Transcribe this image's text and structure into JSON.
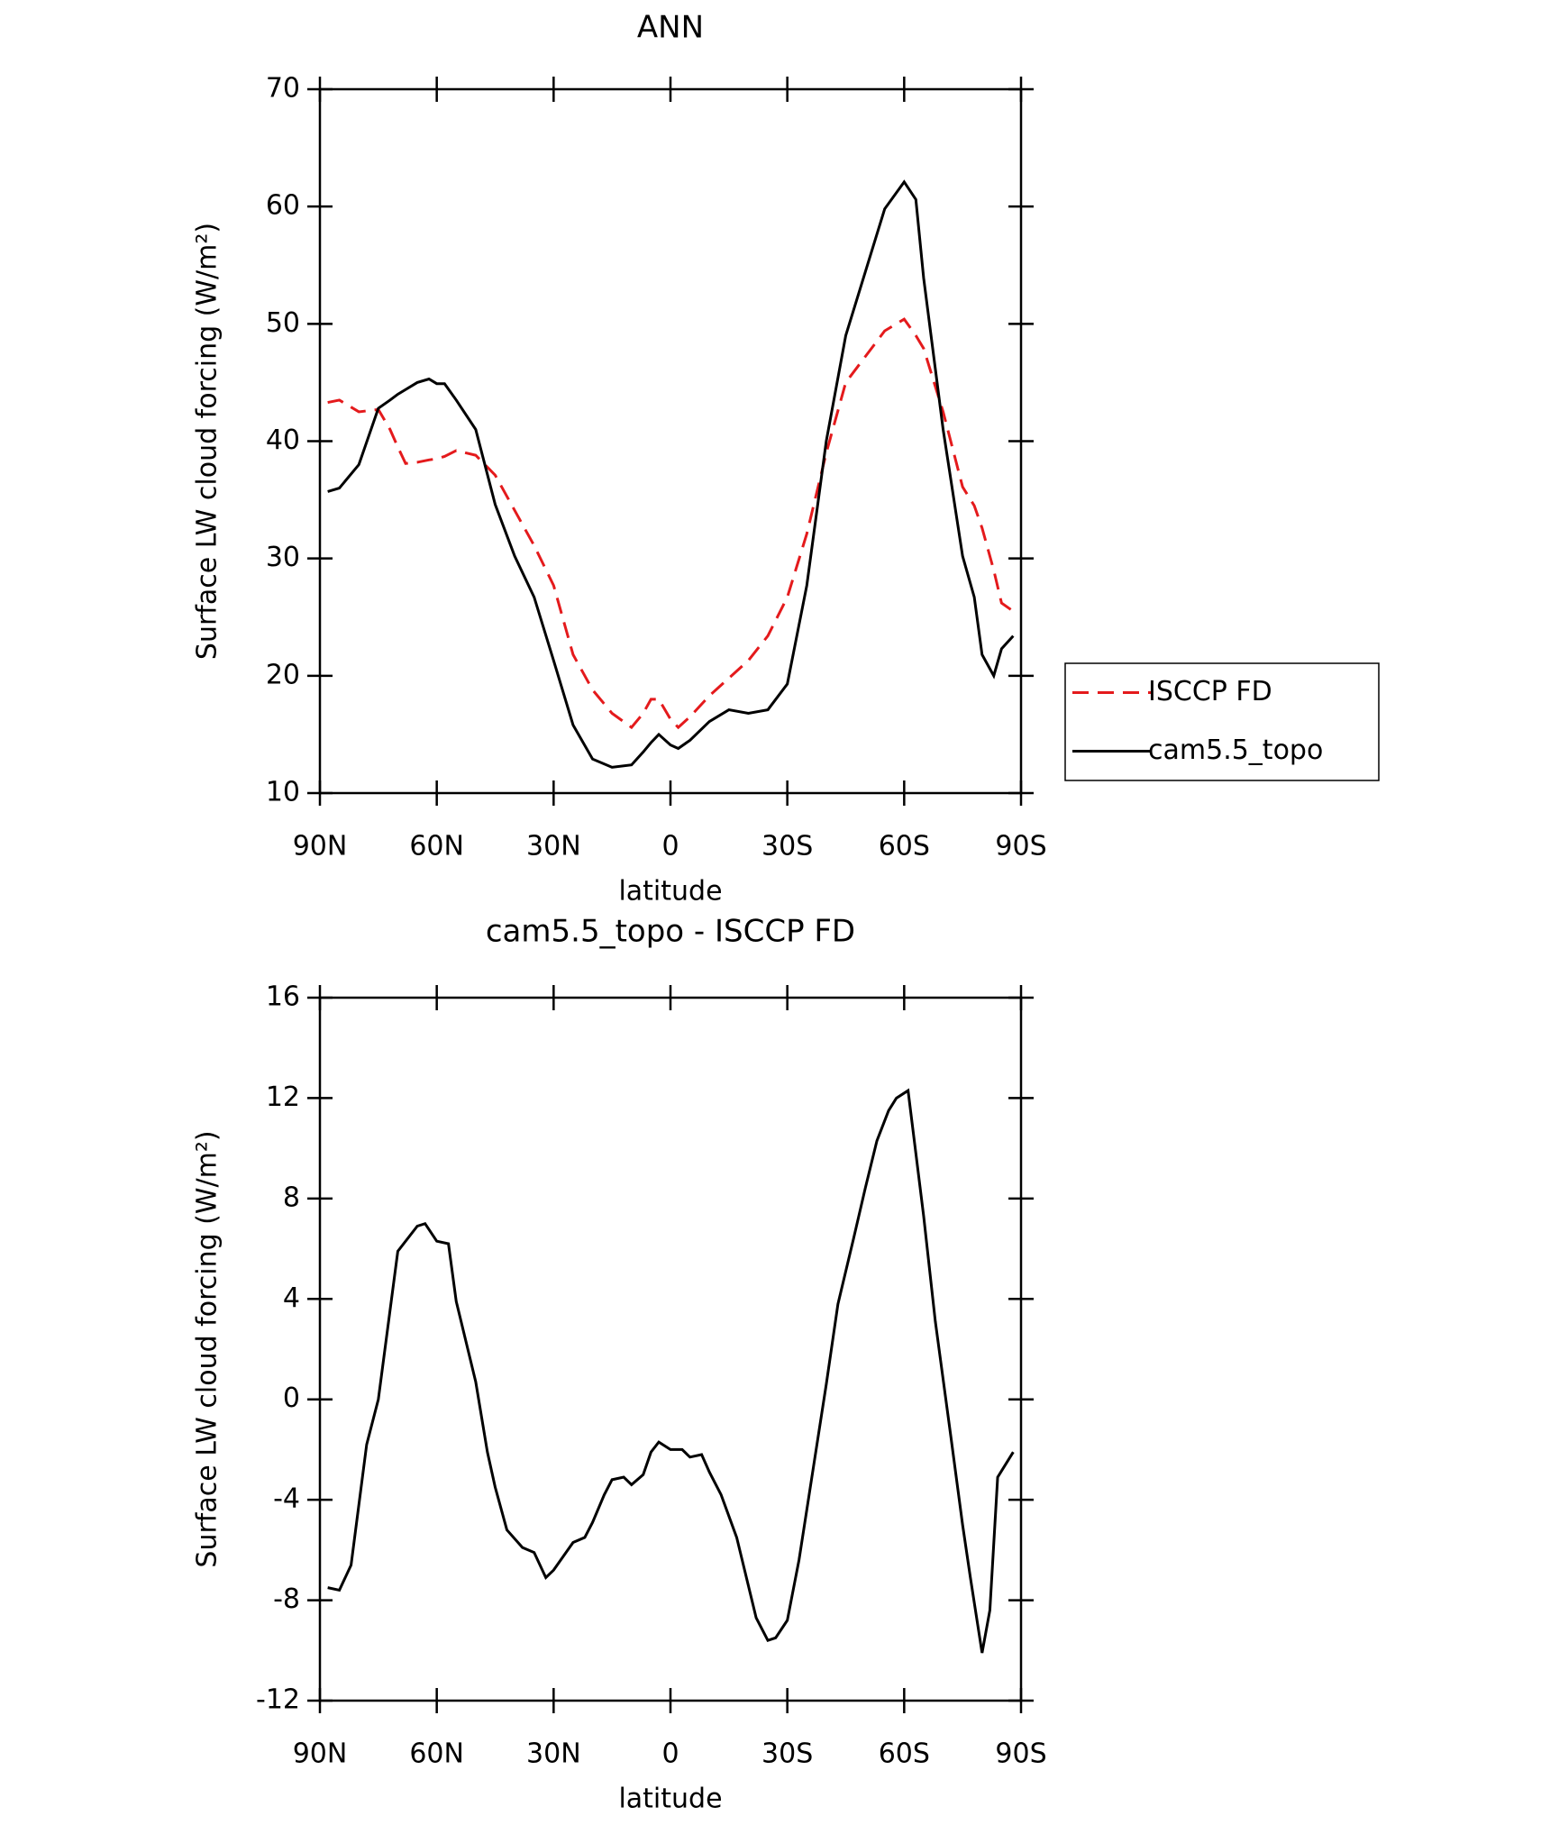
{
  "chart_data": [
    {
      "type": "line",
      "title": "ANN",
      "xlabel": "latitude",
      "ylabel": "Surface LW cloud forcing (W/m²)",
      "x": [
        88,
        85,
        80,
        75,
        72,
        70,
        68,
        65,
        62,
        60,
        58,
        55,
        50,
        45,
        40,
        35,
        30,
        25,
        20,
        15,
        10,
        7,
        5,
        3,
        0,
        -2,
        -5,
        -10,
        -15,
        -20,
        -25,
        -30,
        -35,
        -40,
        -45,
        -50,
        -55,
        -60,
        -63,
        -65,
        -70,
        -75,
        -78,
        -80,
        -83,
        -85,
        -88
      ],
      "series": [
        {
          "name": "ISCCP FD",
          "color": "#e41a1c",
          "linestyle": "dashed",
          "values": [
            43.3,
            43.5,
            42.5,
            42.7,
            41,
            39.5,
            38.1,
            38.2,
            38.4,
            38.5,
            38.7,
            39.2,
            38.8,
            37.1,
            34.1,
            31.1,
            27.7,
            21.8,
            18.8,
            16.8,
            15.6,
            16.8,
            18,
            18,
            16.3,
            15.6,
            16.5,
            18.3,
            19.8,
            21.3,
            23.4,
            26.7,
            32.1,
            39,
            45,
            47.2,
            49.4,
            50.4,
            49,
            47.9,
            42.5,
            36.1,
            34.5,
            32.6,
            29,
            26.2,
            25.5
          ]
        },
        {
          "name": "cam5.5_topo",
          "color": "#000000",
          "linestyle": "solid",
          "values": [
            35.7,
            36,
            38,
            42.8,
            43.5,
            44,
            44.4,
            45,
            45.3,
            44.9,
            44.9,
            43.5,
            41,
            34.6,
            30.2,
            26.7,
            21.3,
            15.8,
            12.9,
            12.2,
            12.4,
            13.5,
            14.3,
            15,
            14.1,
            13.8,
            14.5,
            16.1,
            17.1,
            16.8,
            17.1,
            19.3,
            27.7,
            40,
            49,
            54.4,
            59.8,
            62.1,
            60.6,
            53.9,
            41,
            30.2,
            26.7,
            21.8,
            20,
            22.3,
            23.4
          ]
        }
      ],
      "xlim": [
        90,
        -90
      ],
      "xticks": [
        {
          "value": 90,
          "label": "90N"
        },
        {
          "value": 60,
          "label": "60N"
        },
        {
          "value": 30,
          "label": "30N"
        },
        0,
        {
          "value": -30,
          "label": "30S"
        },
        {
          "value": -60,
          "label": "60S"
        },
        {
          "value": -90,
          "label": "90S"
        }
      ],
      "ylim": [
        10,
        70
      ],
      "yticks": [
        10,
        20,
        30,
        40,
        50,
        60,
        70
      ],
      "legend": "right"
    },
    {
      "type": "line",
      "title": "cam5.5_topo - ISCCP FD",
      "xlabel": "latitude",
      "ylabel": "Surface LW cloud forcing (W/m²)",
      "x": [
        88,
        85,
        82,
        78,
        75,
        70,
        65,
        63,
        60,
        57,
        55,
        50,
        47,
        45,
        42,
        38,
        35,
        32,
        30,
        25,
        22,
        20,
        17,
        15,
        12,
        10,
        7,
        5,
        3,
        0,
        -3,
        -5,
        -8,
        -10,
        -13,
        -17,
        -22,
        -25,
        -27,
        -30,
        -33,
        -37,
        -40,
        -43,
        -47,
        -50,
        -53,
        -56,
        -58,
        -61,
        -65,
        -68,
        -72,
        -75,
        -77,
        -80,
        -82,
        -84,
        -88
      ],
      "series": [
        {
          "color": "#000000",
          "linestyle": "solid",
          "values": [
            -7.5,
            -7.6,
            -6.6,
            -1.8,
            0,
            5.9,
            6.9,
            7,
            6.3,
            6.2,
            3.9,
            0.7,
            -2.1,
            -3.5,
            -5.2,
            -5.9,
            -6.1,
            -7.1,
            -6.8,
            -5.7,
            -5.5,
            -4.9,
            -3.8,
            -3.2,
            -3.1,
            -3.4,
            -3,
            -2.1,
            -1.7,
            -2,
            -2,
            -2.3,
            -2.2,
            -2.9,
            -3.8,
            -5.5,
            -8.7,
            -9.6,
            -9.5,
            -8.8,
            -6.4,
            -2.4,
            0.6,
            3.8,
            6.4,
            8.4,
            10.3,
            11.5,
            12,
            12.3,
            7.3,
            3.1,
            -1.5,
            -5,
            -7.1,
            -10.1,
            -8.4,
            -3.1,
            -2.1
          ]
        }
      ],
      "xlim": [
        90,
        -90
      ],
      "xticks": [
        {
          "value": 90,
          "label": "90N"
        },
        {
          "value": 60,
          "label": "60N"
        },
        {
          "value": 30,
          "label": "30N"
        },
        0,
        {
          "value": -30,
          "label": "30S"
        },
        {
          "value": -60,
          "label": "60S"
        },
        {
          "value": -90,
          "label": "90S"
        }
      ],
      "ylim": [
        -12,
        16
      ],
      "yticks": [
        -12,
        -8,
        -4,
        0,
        4,
        8,
        12,
        16
      ]
    }
  ]
}
